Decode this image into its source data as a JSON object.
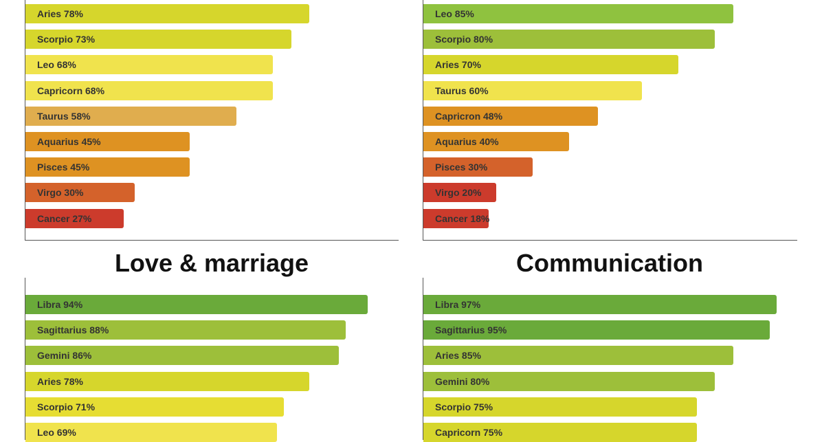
{
  "titles": {
    "love": "Love & marriage",
    "communication": "Communication"
  },
  "chart_data": [
    {
      "type": "bar",
      "orientation": "horizontal",
      "title": "",
      "categories": [
        "Aries",
        "Scorpio",
        "Leo",
        "Capricorn",
        "Taurus",
        "Aquarius",
        "Pisces",
        "Virgo",
        "Cancer"
      ],
      "values": [
        78,
        73,
        68,
        68,
        58,
        45,
        45,
        30,
        27
      ],
      "labels": [
        "Aries 78%",
        "Scorpio 73%",
        "Leo 68%",
        "Capricorn 68%",
        "Taurus 58%",
        "Aquarius 45%",
        "Pisces 45%",
        "Virgo 30%",
        "Cancer 27%"
      ],
      "colors": [
        "#d6d62c",
        "#d6d62c",
        "#f0e34d",
        "#f0e34d",
        "#e0ad4e",
        "#de9222",
        "#de9222",
        "#d4622b",
        "#cc3b2c"
      ],
      "xlim": [
        0,
        100
      ],
      "grid": false
    },
    {
      "type": "bar",
      "orientation": "horizontal",
      "title": "",
      "categories": [
        "Leo",
        "Scorpio",
        "Aries",
        "Taurus",
        "Capricron",
        "Aquarius",
        "Pisces",
        "Virgo",
        "Cancer"
      ],
      "values": [
        85,
        80,
        70,
        60,
        48,
        40,
        30,
        20,
        18
      ],
      "labels": [
        "Leo 85%",
        "Scorpio 80%",
        "Aries 70%",
        "Taurus 60%",
        "Capricron 48%",
        "Aquarius 40%",
        "Pisces 30%",
        "Virgo 20%",
        "Cancer 18%"
      ],
      "colors": [
        "#8fc23f",
        "#9dbf3a",
        "#d6d62c",
        "#f0e34d",
        "#de9222",
        "#de9222",
        "#d4622b",
        "#cc3b2c",
        "#cc3b2c"
      ],
      "xlim": [
        0,
        100
      ],
      "grid": false
    },
    {
      "type": "bar",
      "orientation": "horizontal",
      "title": "Love & marriage",
      "categories": [
        "Libra",
        "Sagittarius",
        "Gemini",
        "Aries",
        "Scorpio",
        "Leo"
      ],
      "values": [
        94,
        88,
        86,
        78,
        71,
        69
      ],
      "labels": [
        "Libra 94%",
        "Sagittarius 88%",
        "Gemini 86%",
        "Aries 78%",
        "Scorpio 71%",
        "Leo 69%"
      ],
      "colors": [
        "#6aaa3a",
        "#9dbf3a",
        "#9dbf3a",
        "#d6d62c",
        "#e6dd33",
        "#f0e34d"
      ],
      "xlim": [
        0,
        100
      ],
      "grid": false
    },
    {
      "type": "bar",
      "orientation": "horizontal",
      "title": "Communication",
      "categories": [
        "Libra",
        "Sagittarius",
        "Aries",
        "Gemini",
        "Scorpio",
        "Capricorn"
      ],
      "values": [
        97,
        95,
        85,
        80,
        75,
        75
      ],
      "labels": [
        "Libra 97%",
        "Sagittarius 95%",
        "Aries 85%",
        "Gemini 80%",
        "Scorpio 75%",
        "Capricorn 75%"
      ],
      "colors": [
        "#6aaa3a",
        "#6aaa3a",
        "#9dbf3a",
        "#9dbf3a",
        "#d6d62c",
        "#d6d62c"
      ],
      "xlim": [
        0,
        100
      ],
      "grid": false
    }
  ]
}
